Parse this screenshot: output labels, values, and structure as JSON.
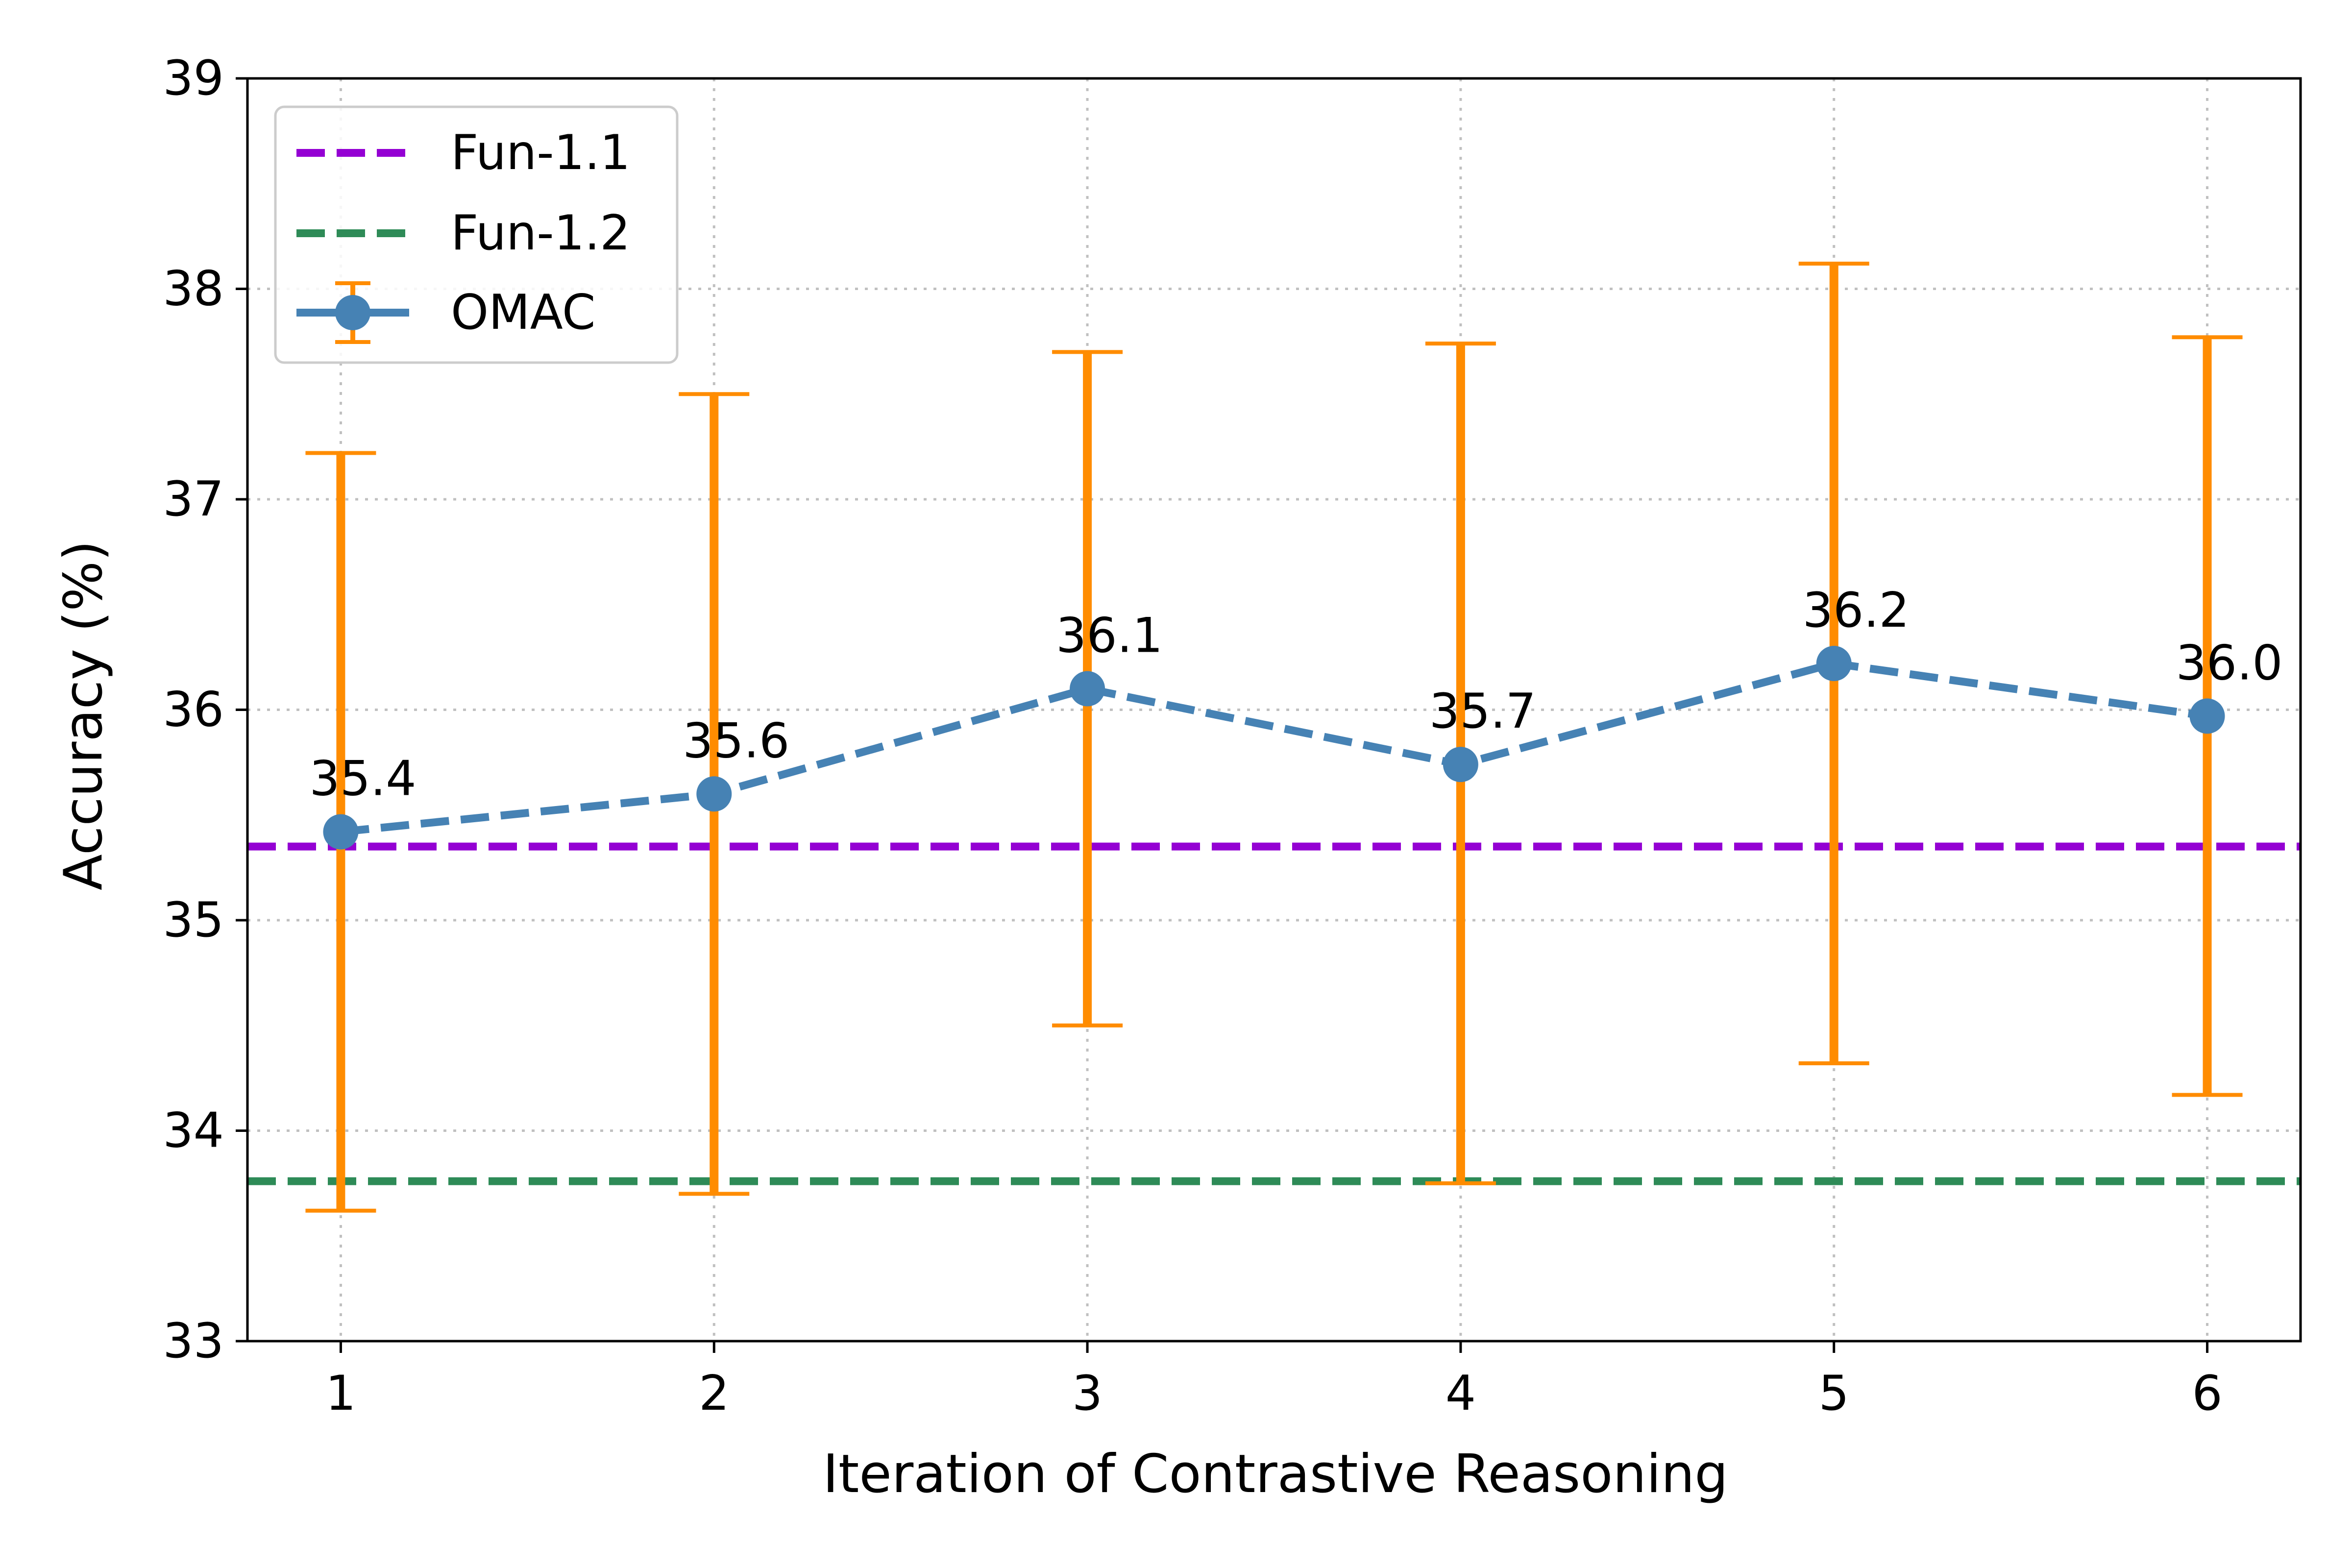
{
  "chart_data": {
    "type": "line",
    "title": "",
    "xlabel": "Iteration of Contrastive Reasoning",
    "ylabel": "Accuracy (%)",
    "xlim": [
      0.75,
      6.25
    ],
    "ylim": [
      33,
      39
    ],
    "xticks": [
      1,
      2,
      3,
      4,
      5,
      6
    ],
    "yticks": [
      33,
      34,
      35,
      36,
      37,
      38,
      39
    ],
    "grid": true,
    "legend_position": "top-left",
    "reference_lines": [
      {
        "name": "Fun-1.1",
        "y": 35.35,
        "color": "#9400D3"
      },
      {
        "name": "Fun-1.2",
        "y": 33.76,
        "color": "#2E8B57"
      }
    ],
    "series": [
      {
        "name": "OMAC",
        "color": "#4682B4",
        "errorbar_color": "#FF8C00",
        "x": [
          1,
          2,
          3,
          4,
          5,
          6
        ],
        "values": [
          35.42,
          35.6,
          36.1,
          35.74,
          36.22,
          35.97
        ],
        "error_low": [
          33.62,
          33.7,
          34.5,
          33.75,
          34.32,
          34.17
        ],
        "error_high": [
          37.22,
          37.5,
          37.7,
          37.74,
          38.12,
          37.77
        ],
        "labels": [
          "35.4",
          "35.6",
          "36.1",
          "35.7",
          "36.2",
          "36.0"
        ]
      }
    ]
  }
}
